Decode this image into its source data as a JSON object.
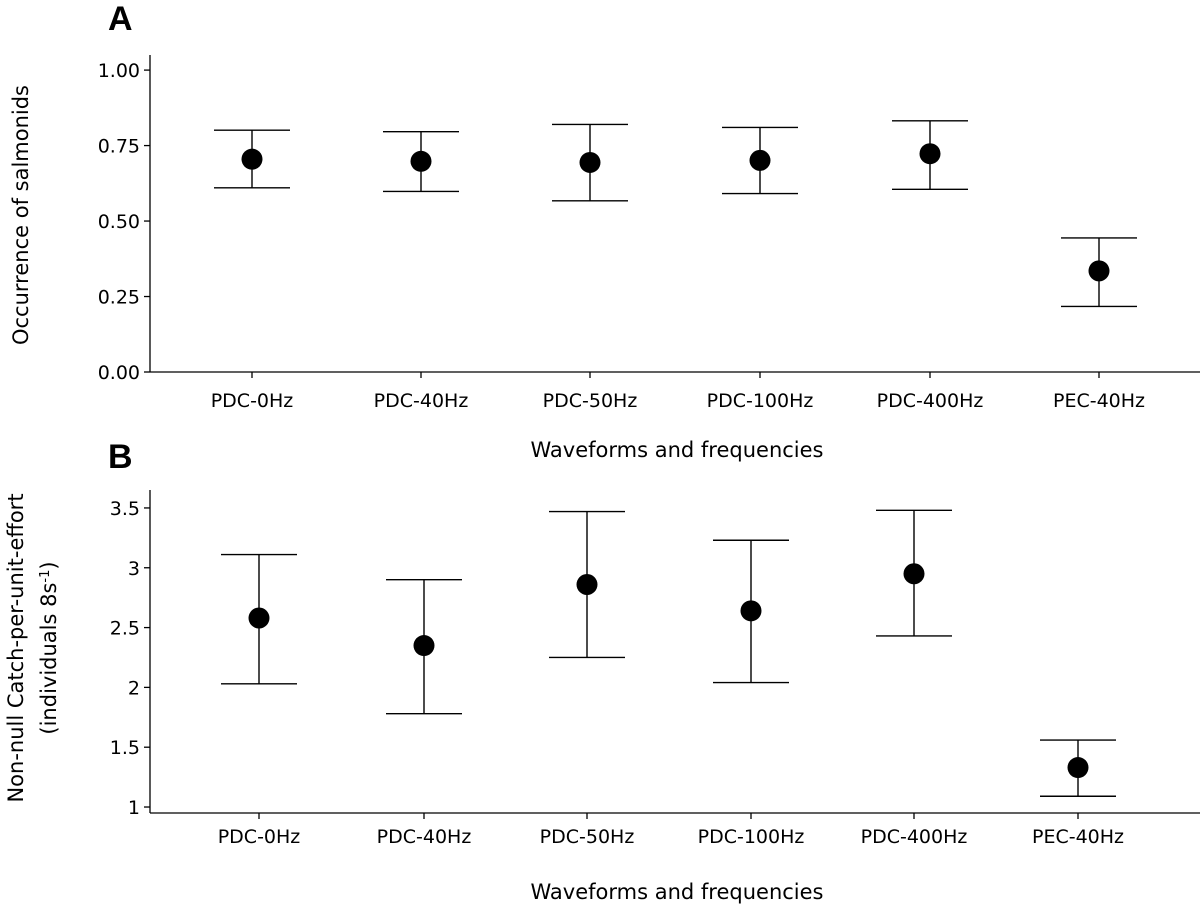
{
  "chart_data": [
    {
      "type": "scatter",
      "panel_label": "A",
      "title": "",
      "xlabel": "Waveforms and frequencies",
      "ylabel": "Occurrence of salmonids",
      "ylabel_line2": "",
      "ylim": [
        0.0,
        1.05
      ],
      "yticks": [
        0.0,
        0.25,
        0.5,
        0.75,
        1.0
      ],
      "ytick_labels": [
        "0.00",
        "0.25",
        "0.50",
        "0.75",
        "1.00"
      ],
      "categories": [
        "PDC-0Hz",
        "PDC-40Hz",
        "PDC-50Hz",
        "PDC-100Hz",
        "PDC-400Hz",
        "PEC-40Hz"
      ],
      "values": [
        0.705,
        0.698,
        0.694,
        0.701,
        0.723,
        0.335
      ],
      "lower": [
        0.61,
        0.598,
        0.567,
        0.591,
        0.605,
        0.217
      ],
      "upper": [
        0.801,
        0.796,
        0.82,
        0.81,
        0.832,
        0.444
      ],
      "grid": false,
      "legend": "none"
    },
    {
      "type": "scatter",
      "panel_label": "B",
      "title": "",
      "xlabel": "Waveforms and frequencies",
      "ylabel": "Non-null Catch-per-unit-effort",
      "ylabel_line2_pre": "(individuals 8s",
      "ylabel_line2_sup": "-1",
      "ylabel_line2_post": ")",
      "ylim": [
        0.95,
        3.65
      ],
      "yticks": [
        1.0,
        1.5,
        2.0,
        2.5,
        3.0,
        3.5
      ],
      "ytick_labels": [
        "1",
        "1.5",
        "2",
        "2.5",
        "3",
        "3.5"
      ],
      "categories": [
        "PDC-0Hz",
        "PDC-40Hz",
        "PDC-50Hz",
        "PDC-100Hz",
        "PDC-400Hz",
        "PEC-40Hz"
      ],
      "values": [
        2.58,
        2.35,
        2.86,
        2.64,
        2.95,
        1.33
      ],
      "lower": [
        2.03,
        1.78,
        2.25,
        2.04,
        2.43,
        1.09
      ],
      "upper": [
        3.11,
        2.9,
        3.47,
        3.23,
        3.48,
        1.56
      ],
      "grid": false,
      "legend": "none"
    }
  ]
}
